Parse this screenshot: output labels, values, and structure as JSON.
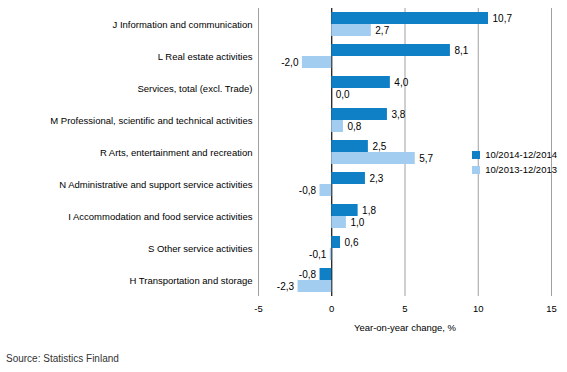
{
  "chart_data": {
    "type": "bar",
    "orientation": "horizontal",
    "categories": [
      "J Information and communication",
      "L Real estate activities",
      "Services, total (excl. Trade)",
      "M Professional, scientific and technical activities",
      "R Arts, entertainment and recreation",
      "N Administrative and support service activities",
      "I Accommodation and food service activities",
      "S Other service activities",
      "H Transportation and storage"
    ],
    "series": [
      {
        "name": "10/2014-12/2014",
        "color": "#0f7fc6",
        "values": [
          10.7,
          8.1,
          4.0,
          3.8,
          2.5,
          2.3,
          1.8,
          0.6,
          -0.8
        ],
        "value_labels": [
          "10,7",
          "8,1",
          "4,0",
          "3,8",
          "2,5",
          "2,3",
          "1,8",
          "0,6",
          "-0,8"
        ]
      },
      {
        "name": "10/2013-12/2013",
        "color": "#a3cdf0",
        "values": [
          2.7,
          -2.0,
          0.0,
          0.8,
          5.7,
          -0.8,
          1.0,
          -0.1,
          -2.3
        ],
        "value_labels": [
          "2,7",
          "-2,0",
          "0,0",
          "0,8",
          "5,7",
          "-0,8",
          "1,0",
          "-0,1",
          "-2,3"
        ]
      }
    ],
    "xlim": [
      -5,
      15
    ],
    "xticks": [
      -5,
      0,
      5,
      10,
      15
    ],
    "x_label": "Year-on-year change, %",
    "grid": true,
    "legend": "right",
    "data_labels": true,
    "source": "Source: Statistics Finland"
  }
}
